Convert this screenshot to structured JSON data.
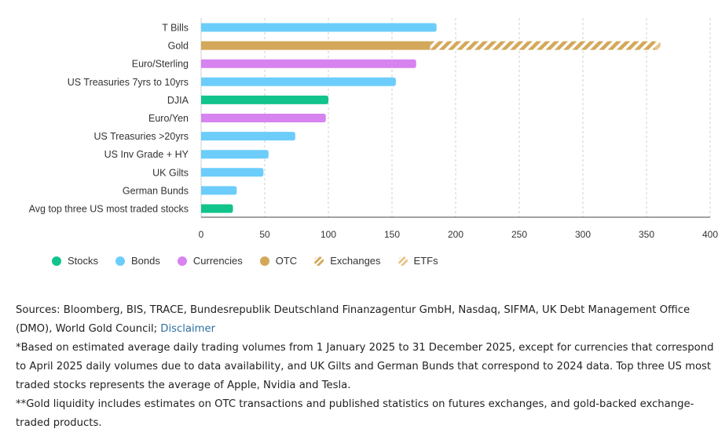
{
  "chart_data": {
    "type": "bar",
    "orientation": "horizontal",
    "stacked": true,
    "xlim": [
      0,
      400
    ],
    "x_ticks": [
      0,
      50,
      100,
      150,
      200,
      250,
      300,
      350,
      400
    ],
    "grid": true,
    "legend_position": "bottom-left",
    "categories": [
      "T Bills",
      "Gold",
      "Euro/Sterling",
      "US Treasuries 7yrs to 10yrs",
      "DJIA",
      "Euro/Yen",
      "US Treasuries >20yrs",
      "US Inv Grade + HY",
      "UK Gilts",
      "German Bunds",
      "Avg top three US most traded stocks"
    ],
    "bars": [
      {
        "category": "T Bills",
        "segments": [
          {
            "series": "Bonds",
            "value": 185
          }
        ]
      },
      {
        "category": "Gold",
        "segments": [
          {
            "series": "OTC",
            "value": 180
          },
          {
            "series": "Exchanges",
            "value": 177
          },
          {
            "series": "ETFs",
            "value": 4
          }
        ]
      },
      {
        "category": "Euro/Sterling",
        "segments": [
          {
            "series": "Currencies",
            "value": 169
          }
        ]
      },
      {
        "category": "US Treasuries 7yrs to 10yrs",
        "segments": [
          {
            "series": "Bonds",
            "value": 153
          }
        ]
      },
      {
        "category": "DJIA",
        "segments": [
          {
            "series": "Stocks",
            "value": 100
          }
        ]
      },
      {
        "category": "Euro/Yen",
        "segments": [
          {
            "series": "Currencies",
            "value": 98
          }
        ]
      },
      {
        "category": "US Treasuries >20yrs",
        "segments": [
          {
            "series": "Bonds",
            "value": 74
          }
        ]
      },
      {
        "category": "US Inv Grade + HY",
        "segments": [
          {
            "series": "Bonds",
            "value": 53
          }
        ]
      },
      {
        "category": "UK Gilts",
        "segments": [
          {
            "series": "Bonds",
            "value": 49
          }
        ]
      },
      {
        "category": "German Bunds",
        "segments": [
          {
            "series": "Bonds",
            "value": 28
          }
        ]
      },
      {
        "category": "Avg top three US most traded stocks",
        "segments": [
          {
            "series": "Stocks",
            "value": 25
          }
        ]
      }
    ],
    "series": [
      {
        "name": "Stocks",
        "color": "#10c48b",
        "pattern": "solid"
      },
      {
        "name": "Bonds",
        "color": "#6ccdfb",
        "pattern": "solid"
      },
      {
        "name": "Currencies",
        "color": "#d783f0",
        "pattern": "solid"
      },
      {
        "name": "OTC",
        "color": "#d4a85a",
        "pattern": "solid"
      },
      {
        "name": "Exchanges",
        "color": "#d4a85a",
        "pattern": "hatch"
      },
      {
        "name": "ETFs",
        "color": "#e6c589",
        "pattern": "hatch"
      }
    ]
  },
  "notes": {
    "sources": "Sources: Bloomberg, BIS, TRACE, Bundesrepublik Deutschland Finanzagentur GmbH, Nasdaq, SIFMA, UK Debt Management Office (DMO), World Gold Council; ",
    "disclaimer_link": "Disclaimer",
    "footnote1": "*Based on estimated average daily trading volumes from 1 January 2025 to 31 December 2025, except for currencies that correspond to April 2025 daily volumes due to data availability, and UK Gilts and German Bunds that correspond to 2024 data. Top three US most traded stocks represents the average of Apple, Nvidia and Tesla.",
    "footnote2": "**Gold liquidity includes estimates on OTC transactions and published statistics on futures exchanges, and gold-backed exchange-traded products."
  }
}
